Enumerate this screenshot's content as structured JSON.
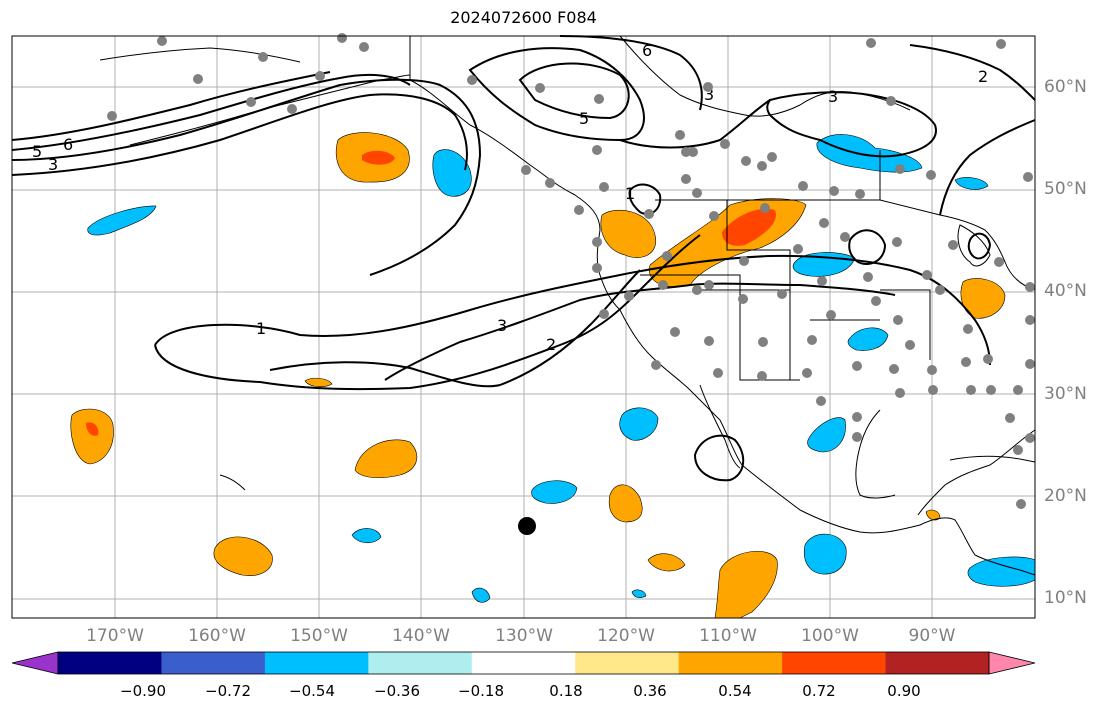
{
  "title": "2024072600 F084",
  "map": {
    "lat_labels": [
      "60°N",
      "50°N",
      "40°N",
      "30°N",
      "20°N",
      "10°N"
    ],
    "lon_labels": [
      "170°W",
      "160°W",
      "150°W",
      "140°W",
      "130°W",
      "120°W",
      "110°W",
      "100°W",
      "90°W"
    ],
    "contour_labels": [
      "5",
      "6",
      "3",
      "1",
      "3",
      "2",
      "6",
      "5",
      "3",
      "3",
      "2",
      "1"
    ]
  },
  "colorbar": {
    "colors": [
      "#9933cc",
      "#000080",
      "#3a5fcd",
      "#00bfff",
      "#afeeee",
      "#ffffff",
      "#ffe88a",
      "#ffa500",
      "#ff4500",
      "#b22222",
      "#ff88aa"
    ],
    "tick_labels": [
      "−0.90",
      "−0.72",
      "−0.54",
      "−0.36",
      "−0.18",
      "0.18",
      "0.36",
      "0.54",
      "0.72",
      "0.90"
    ]
  }
}
